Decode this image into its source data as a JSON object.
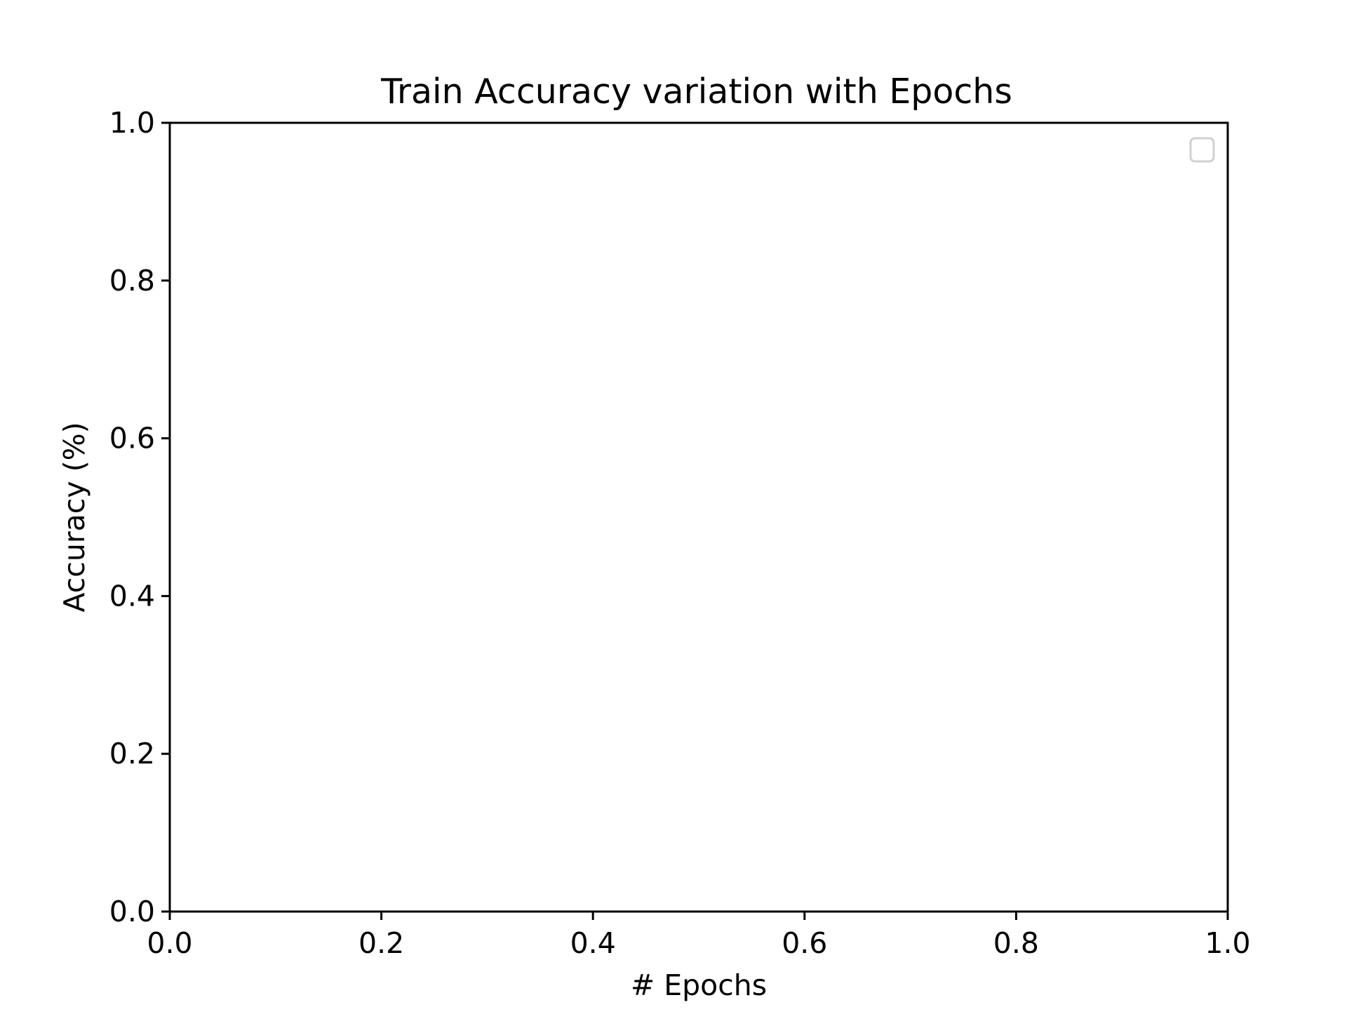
{
  "chart_data": {
    "type": "line",
    "title": "Train Accuracy variation with Epochs",
    "xlabel": "# Epochs",
    "ylabel": "Accuracy (%)",
    "xlim": [
      0.0,
      1.0
    ],
    "ylim": [
      0.0,
      1.0
    ],
    "x_ticks": [
      "0.0",
      "0.2",
      "0.4",
      "0.6",
      "0.8",
      "1.0"
    ],
    "y_ticks": [
      "0.0",
      "0.2",
      "0.4",
      "0.6",
      "0.8",
      "1.0"
    ],
    "series": [],
    "grid": false,
    "legend": {
      "placement": "upper right",
      "entries": []
    }
  }
}
